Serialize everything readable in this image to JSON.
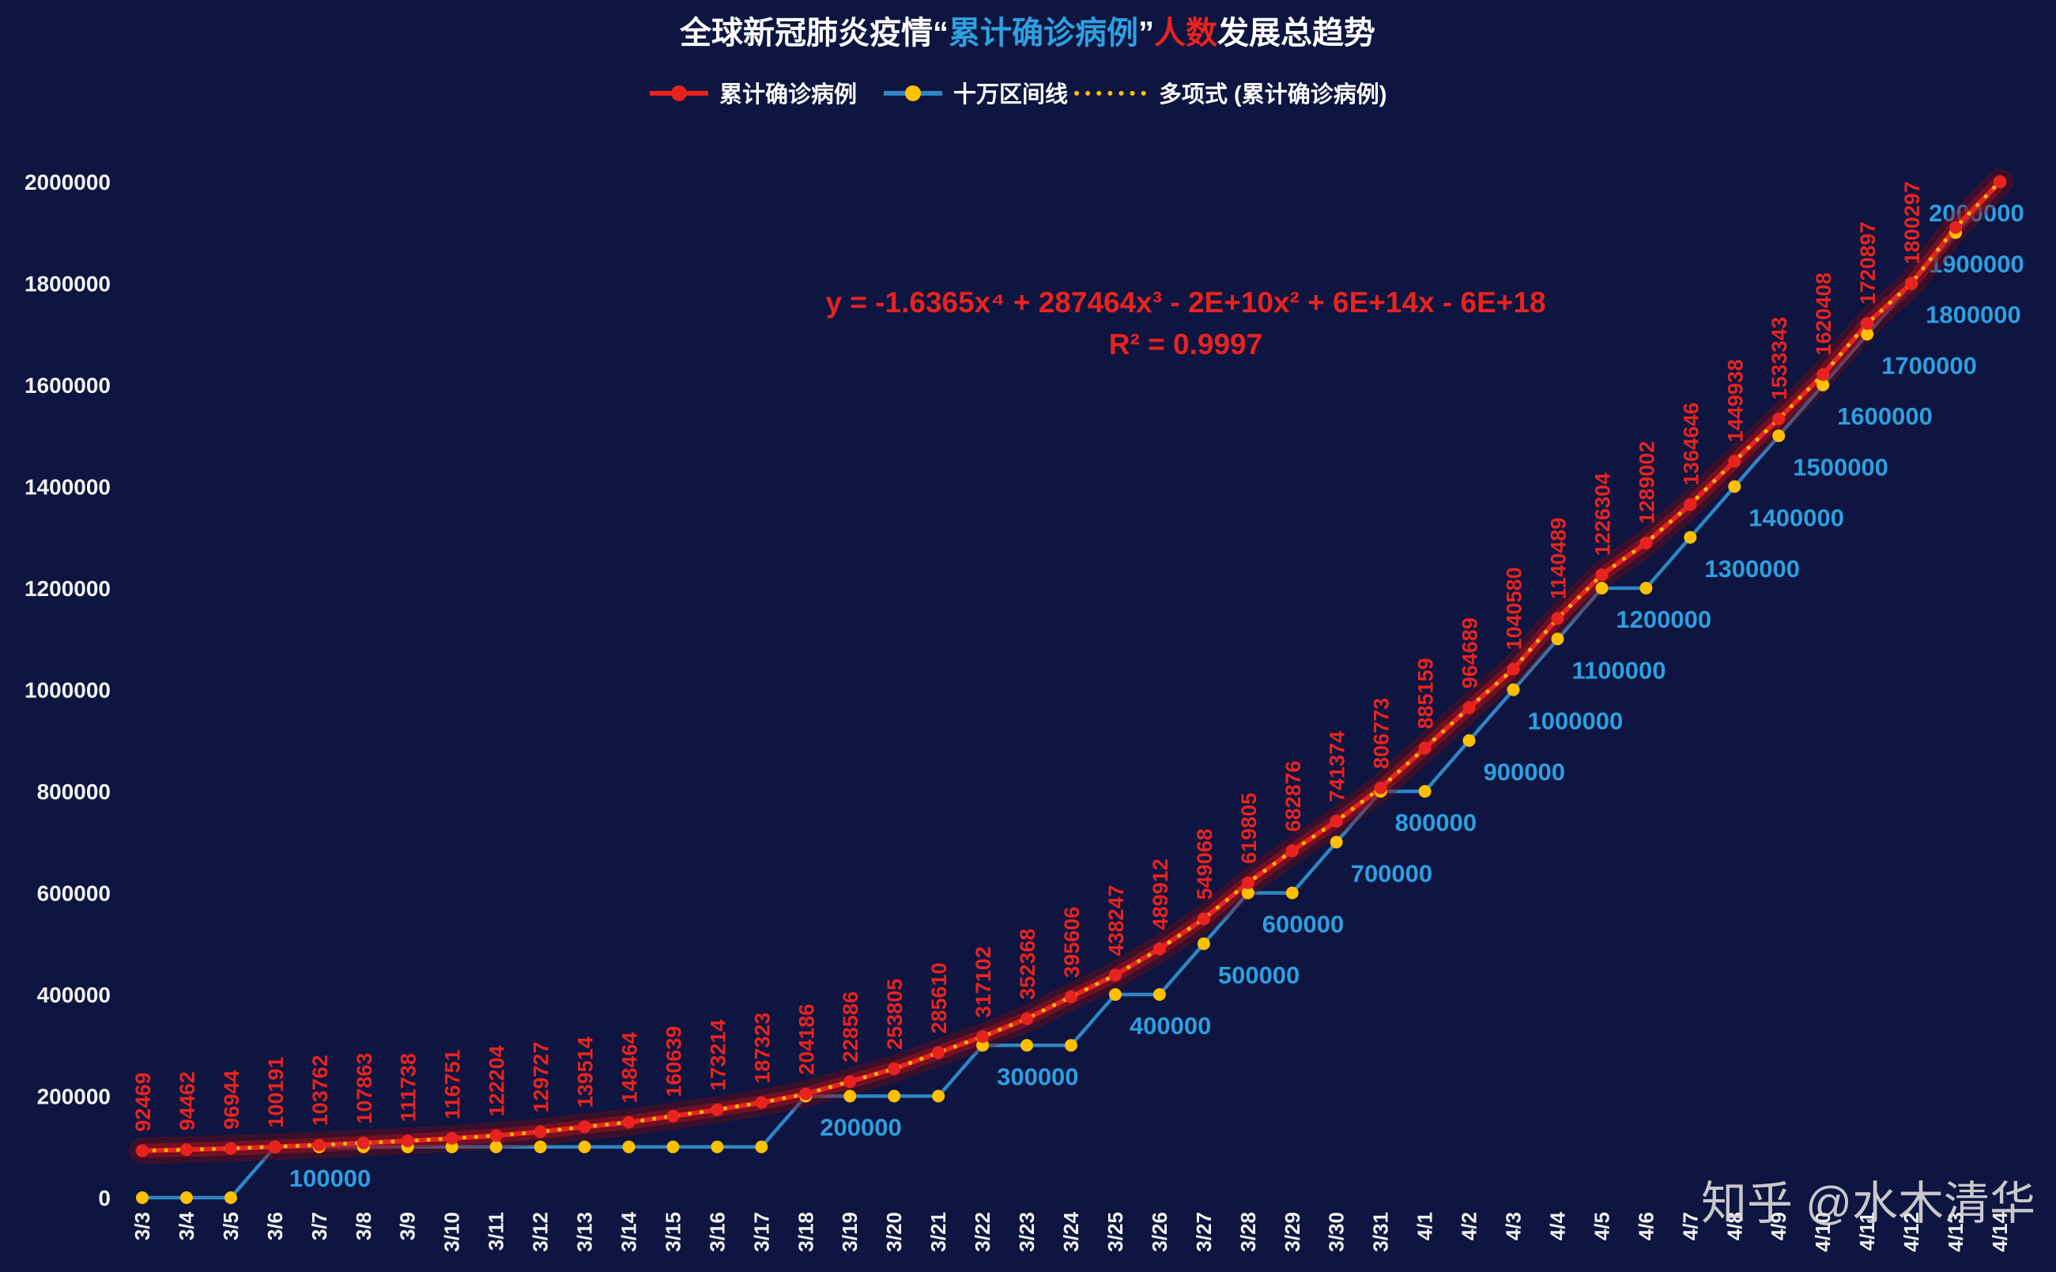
{
  "title": {
    "segments": [
      {
        "text": "全球新冠肺炎疫情“",
        "color": "#ffffff"
      },
      {
        "text": "累计确诊病例",
        "color": "#2e9fdf"
      },
      {
        "text": "”",
        "color": "#ffffff"
      },
      {
        "text": "人数",
        "color": "#e8231f"
      },
      {
        "text": "发展总趋势",
        "color": "#ffffff"
      }
    ]
  },
  "legend": [
    {
      "label": "累计确诊病例",
      "line_color": "#e8231f",
      "marker_color": "#e8231f"
    },
    {
      "label": "十万区间线",
      "line_color": "#2f86c4",
      "marker_color": "#ffc000"
    },
    {
      "label": "多项式 (累计确诊病例)",
      "line_color": "#ffc000",
      "style": "dotted"
    }
  ],
  "equation": {
    "line1": "y = -1.6365x⁴ + 287464x³ - 2E+10x² + 6E+14x - 6E+18",
    "line2": "R² = 0.9997",
    "color": "#e8231f"
  },
  "watermark": {
    "text": "知乎 @水木清华",
    "color": "#d8d8d8"
  },
  "colors": {
    "background": "#0d1540",
    "axis_text": "#f2f2f2",
    "confirmed": "#e8231f",
    "confirmed_glow_outer": "#7c0b10",
    "confirmed_glow_mid": "#a3111a",
    "interval_line": "#2f86c4",
    "interval_label": "#2e9fdf",
    "marker_gold": "#ffc000"
  },
  "chart_data": {
    "type": "line",
    "title": "全球新冠肺炎疫情“累计确诊病例”人数发展总趋势",
    "x": [
      "3/3",
      "3/4",
      "3/5",
      "3/6",
      "3/7",
      "3/8",
      "3/9",
      "3/10",
      "3/11",
      "3/12",
      "3/13",
      "3/14",
      "3/15",
      "3/16",
      "3/17",
      "3/18",
      "3/19",
      "3/20",
      "3/21",
      "3/22",
      "3/23",
      "3/24",
      "3/25",
      "3/26",
      "3/27",
      "3/28",
      "3/29",
      "3/30",
      "3/31",
      "4/1",
      "4/2",
      "4/3",
      "4/4",
      "4/5",
      "4/6",
      "4/7",
      "4/8",
      "4/9",
      "4/10",
      "4/11",
      "4/12",
      "4/13",
      "4/14"
    ],
    "ylim": [
      0,
      2000000
    ],
    "yticks": [
      0,
      200000,
      400000,
      600000,
      800000,
      1000000,
      1200000,
      1400000,
      1600000,
      1800000,
      2000000
    ],
    "grid": false,
    "legend_position": "top",
    "series": [
      {
        "name": "累计确诊病例",
        "type": "line+markers",
        "color": "#e8231f",
        "labeled_points": 41,
        "values": [
          92469,
          94462,
          96944,
          100191,
          103762,
          107863,
          111738,
          116751,
          122204,
          129727,
          139514,
          148464,
          160639,
          173214,
          187323,
          204186,
          228586,
          253805,
          285610,
          317102,
          352368,
          395606,
          438247,
          489912,
          549068,
          619805,
          682876,
          741374,
          806773,
          885159,
          964689,
          1040580,
          1140489,
          1226304,
          1289002,
          1364646,
          1449938,
          1533343,
          1620408,
          1720897,
          1800297,
          1910000,
          2000000
        ]
      },
      {
        "name": "十万区间线",
        "type": "step-line+markers",
        "color": "#2f86c4",
        "marker_color": "#ffc000",
        "values": [
          0,
          0,
          0,
          100000,
          100000,
          100000,
          100000,
          100000,
          100000,
          100000,
          100000,
          100000,
          100000,
          100000,
          100000,
          200000,
          200000,
          200000,
          200000,
          300000,
          300000,
          300000,
          400000,
          400000,
          500000,
          600000,
          600000,
          700000,
          800000,
          800000,
          900000,
          1000000,
          1100000,
          1200000,
          1200000,
          1300000,
          1400000,
          1500000,
          1600000,
          1700000,
          1800000,
          1900000,
          2000000
        ]
      },
      {
        "name": "多项式 (累计确诊病例)",
        "type": "dotted-trend",
        "color": "#ffc000",
        "follows": "累计确诊病例"
      }
    ],
    "interval_labels": [
      100000,
      200000,
      300000,
      400000,
      500000,
      600000,
      700000,
      800000,
      900000,
      1000000,
      1100000,
      1200000,
      1300000,
      1400000,
      1500000,
      1600000,
      1700000,
      1800000,
      1900000,
      2000000
    ]
  }
}
